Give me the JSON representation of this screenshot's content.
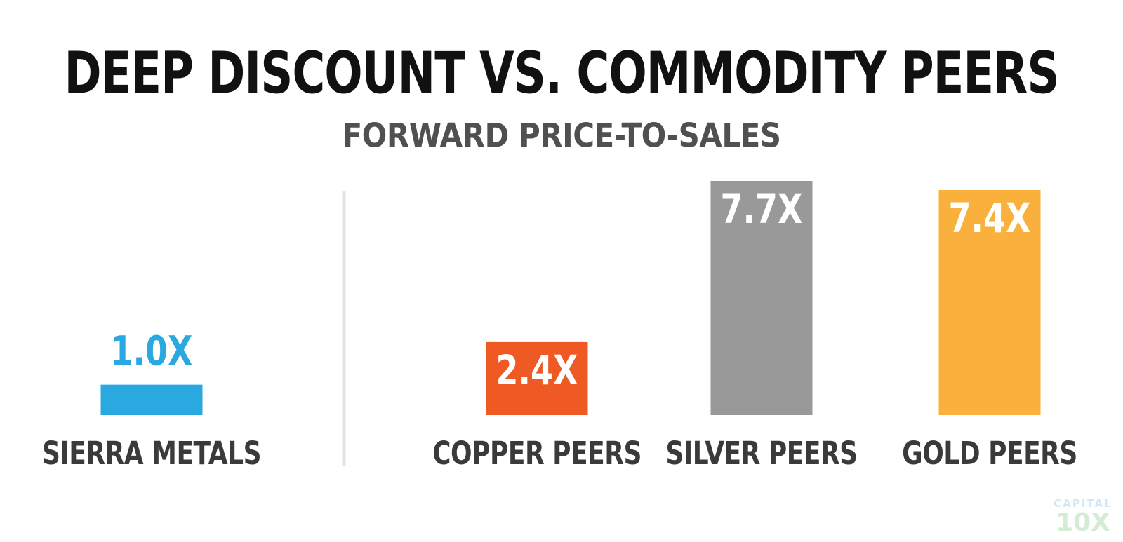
{
  "title": "DEEP DISCOUNT VS. COMMODITY PEERS",
  "subtitle": "FORWARD PRICE-TO-SALES",
  "logo": {
    "top": "CAPITAL",
    "bottom": "10X"
  },
  "chart_data": {
    "type": "bar",
    "categories": [
      "SIERRA METALS",
      "COPPER PEERS",
      "SILVER PEERS",
      "GOLD PEERS"
    ],
    "values": [
      1.0,
      2.4,
      7.7,
      7.4
    ],
    "data_labels": [
      "1.0X",
      "2.4X",
      "7.7X",
      "7.4X"
    ],
    "colors": [
      "#2aa8e0",
      "#ef5a24",
      "#999999",
      "#f9b03d"
    ],
    "label_colors": [
      "#2aa8e0",
      "#ffffff",
      "#ffffff",
      "#ffffff"
    ],
    "label_inside": [
      false,
      true,
      true,
      true
    ],
    "ylim": [
      0,
      7.7
    ],
    "grid": false
  }
}
